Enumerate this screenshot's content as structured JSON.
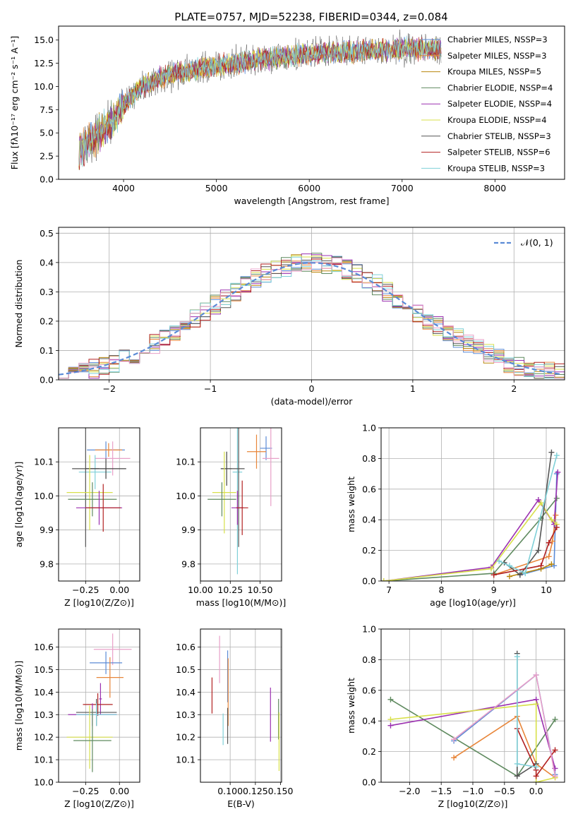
{
  "figure": {
    "title": "PLATE=0757, MJD=52238, FIBERID=0344, z=0.084"
  },
  "chart_data": [
    {
      "id": "spectrum",
      "type": "line",
      "xlabel": "wavelength [Angstrom, rest frame]",
      "ylabel": "Flux [fλ10⁻¹⁷ erg cm⁻² s⁻¹ A⁻¹]",
      "xlim": [
        3300,
        8750
      ],
      "ylim": [
        0,
        16.5
      ],
      "xticks": [
        4000,
        5000,
        6000,
        7000,
        8000
      ],
      "yticks": [
        0.0,
        2.5,
        5.0,
        7.5,
        10.0,
        12.5,
        15.0
      ],
      "ytick_labels": [
        "0.0",
        "2.5",
        "5.0",
        "7.5",
        "10.0",
        "12.5",
        "15.0"
      ],
      "legend_position": "upper-right",
      "grid": false,
      "series": [
        {
          "name": "Chabrier MILES, NSSP=3",
          "color": "#5b8bd6"
        },
        {
          "name": "Salpeter MILES, NSSP=3",
          "color": "#e8863a"
        },
        {
          "name": "Kroupa MILES, NSSP=5",
          "color": "#b8860b"
        },
        {
          "name": "Chabrier ELODIE, NSSP=4",
          "color": "#5f8a5f"
        },
        {
          "name": "Salpeter ELODIE, NSSP=4",
          "color": "#9b30b0"
        },
        {
          "name": "Kroupa ELODIE, NSSP=4",
          "color": "#d8e04a"
        },
        {
          "name": "Chabrier STELIB, NSSP=3",
          "color": "#555555"
        },
        {
          "name": "Salpeter STELIB, NSSP=6",
          "color": "#b22222"
        },
        {
          "name": "Kroupa STELIB, NSSP=3",
          "color": "#7fd0d8"
        }
      ],
      "continuum": {
        "x": [
          3500,
          3700,
          3900,
          4000,
          4200,
          4500,
          4800,
          5000,
          5200,
          5500,
          5800,
          6000,
          6300,
          6600,
          6800,
          7000,
          7200,
          7400
        ],
        "y": [
          3.0,
          4.5,
          6.5,
          8.0,
          10.0,
          11.3,
          11.8,
          12.2,
          12.5,
          13.0,
          13.2,
          13.5,
          13.7,
          13.8,
          13.9,
          14.0,
          14.1,
          14.0
        ]
      }
    },
    {
      "id": "residuals",
      "type": "histogram",
      "xlabel": "(data-model)/error",
      "ylabel": "Normed distribution",
      "xlim": [
        -2.5,
        2.5
      ],
      "ylim": [
        0,
        0.52
      ],
      "xticks": [
        -2,
        -1,
        0,
        1,
        2
      ],
      "xtick_labels": [
        "−2",
        "−1",
        "0",
        "1",
        "2"
      ],
      "yticks": [
        0.0,
        0.1,
        0.2,
        0.3,
        0.4,
        0.5
      ],
      "ytick_labels": [
        "0.0",
        "0.1",
        "0.2",
        "0.3",
        "0.4",
        "0.5"
      ],
      "grid": true,
      "legend_position": "upper-right",
      "reference_curve": {
        "name": "𝒩(0, 1)",
        "color": "#5b8bd6",
        "mean": 0,
        "sigma": 1
      },
      "bin_width": 0.1
    },
    {
      "id": "age-vs-Z",
      "type": "errorbar",
      "xlabel": "Z [log10(Z/Z⊙)]",
      "ylabel": "age  [log10(age/yr)]",
      "xlim": [
        -0.45,
        0.15
      ],
      "ylim": [
        9.75,
        10.2
      ],
      "xticks": [
        -0.25,
        0.0
      ],
      "xtick_labels": [
        "−0.25",
        "0.00"
      ],
      "yticks": [
        9.8,
        9.9,
        10.0,
        10.1
      ],
      "ytick_labels": [
        "9.8",
        "9.9",
        "10.0",
        "10.1"
      ],
      "grid": true,
      "points": [
        {
          "x": -0.1,
          "y": 10.135,
          "xerr": 0.14,
          "yerr": 0.025,
          "color": "#5b8bd6"
        },
        {
          "x": -0.08,
          "y": 10.135,
          "xerr": 0.1,
          "yerr": 0.02,
          "color": "#e8863a"
        },
        {
          "x": -0.05,
          "y": 10.11,
          "xerr": 0.13,
          "yerr": 0.05,
          "color": "#e8a0c8"
        },
        {
          "x": -0.18,
          "y": 10.07,
          "xerr": 0.12,
          "yerr": 0.05,
          "color": "#7fd0d8"
        },
        {
          "x": -0.25,
          "y": 10.08,
          "xerr": 0.1,
          "yerr": 0.23,
          "color": "#555555"
        },
        {
          "x": -0.1,
          "y": 10.08,
          "xerr": 0.15,
          "yerr": 0.03,
          "color": "#444444"
        },
        {
          "x": -0.22,
          "y": 10.01,
          "xerr": 0.17,
          "yerr": 0.11,
          "color": "#d8e04a"
        },
        {
          "x": -0.2,
          "y": 9.99,
          "xerr": 0.18,
          "yerr": 0.05,
          "color": "#5f8a5f"
        },
        {
          "x": -0.15,
          "y": 9.965,
          "xerr": 0.17,
          "yerr": 0.05,
          "color": "#9b30b0"
        },
        {
          "x": -0.12,
          "y": 9.965,
          "xerr": 0.13,
          "yerr": 0.07,
          "color": "#b22222"
        }
      ]
    },
    {
      "id": "age-vs-mass",
      "type": "errorbar",
      "xlabel": "mass [log10(M/M⊙)]",
      "ylabel": "",
      "xlim": [
        10.0,
        10.68
      ],
      "ylim": [
        9.75,
        10.2
      ],
      "xticks": [
        10.0,
        10.25,
        10.5
      ],
      "xtick_labels": [
        "10.00",
        "10.25",
        "10.50"
      ],
      "yticks": [
        9.8,
        9.9,
        10.0,
        10.1
      ],
      "ytick_labels": [
        "9.8",
        "9.9",
        "10.0",
        "10.1"
      ],
      "grid": true,
      "points": [
        {
          "x": 10.55,
          "y": 10.14,
          "xerr": 0.05,
          "yerr": 0.035,
          "color": "#5b8bd6"
        },
        {
          "x": 10.47,
          "y": 10.13,
          "xerr": 0.08,
          "yerr": 0.05,
          "color": "#e8863a"
        },
        {
          "x": 10.59,
          "y": 10.11,
          "xerr": 0.07,
          "yerr": 0.14,
          "color": "#e8a0c8"
        },
        {
          "x": 10.31,
          "y": 10.07,
          "xerr": 0.04,
          "yerr": 0.3,
          "color": "#7fd0d8"
        },
        {
          "x": 10.32,
          "y": 10.08,
          "xerr": 0.05,
          "yerr": 0.23,
          "color": "#555555"
        },
        {
          "x": 10.22,
          "y": 10.08,
          "xerr": 0.05,
          "yerr": 0.05,
          "color": "#444444"
        },
        {
          "x": 10.2,
          "y": 10.01,
          "xerr": 0.1,
          "yerr": 0.12,
          "color": "#d8e04a"
        },
        {
          "x": 10.18,
          "y": 9.99,
          "xerr": 0.12,
          "yerr": 0.05,
          "color": "#5f8a5f"
        },
        {
          "x": 10.31,
          "y": 9.965,
          "xerr": 0.05,
          "yerr": 0.05,
          "color": "#9b30b0"
        },
        {
          "x": 10.35,
          "y": 9.965,
          "xerr": 0.05,
          "yerr": 0.08,
          "color": "#b22222"
        }
      ]
    },
    {
      "id": "weight-vs-age",
      "type": "line",
      "xlabel": "age  [log10(age/yr)]",
      "ylabel": "mass weight",
      "xlim": [
        6.85,
        10.35
      ],
      "ylim": [
        0,
        1.0
      ],
      "xticks": [
        7,
        8,
        9,
        10
      ],
      "xtick_labels": [
        "7",
        "8",
        "9",
        "10"
      ],
      "yticks": [
        0.0,
        0.2,
        0.4,
        0.6,
        0.8,
        1.0
      ],
      "ytick_labels": [
        "0.0",
        "0.2",
        "0.4",
        "0.6",
        "0.8",
        "1.0"
      ],
      "grid": true,
      "series": [
        {
          "color": "#5b8bd6",
          "x": [
            9.5,
            10.15,
            10.2
          ],
          "y": [
            0.04,
            0.1,
            0.7
          ]
        },
        {
          "color": "#e8863a",
          "x": [
            9.0,
            10.05,
            10.12,
            10.18
          ],
          "y": [
            0.04,
            0.16,
            0.26,
            0.43
          ]
        },
        {
          "color": "#b8860b",
          "x": [
            9.3,
            9.9,
            10.1
          ],
          "y": [
            0.03,
            0.08,
            0.11
          ]
        },
        {
          "color": "#5f8a5f",
          "x": [
            6.9,
            9.0,
            9.9,
            10.2
          ],
          "y": [
            0.0,
            0.05,
            0.41,
            0.54
          ]
        },
        {
          "color": "#9b30b0",
          "x": [
            6.9,
            8.95,
            9.85,
            10.15,
            10.22
          ],
          "y": [
            0.0,
            0.09,
            0.53,
            0.37,
            0.71
          ]
        },
        {
          "color": "#d8e04a",
          "x": [
            6.9,
            8.95,
            9.9,
            10.1,
            10.2
          ],
          "y": [
            0.0,
            0.08,
            0.51,
            0.4,
            0.37
          ]
        },
        {
          "color": "#555555",
          "x": [
            9.2,
            9.5,
            9.85,
            10.1
          ],
          "y": [
            0.12,
            0.04,
            0.2,
            0.84
          ]
        },
        {
          "color": "#b22222",
          "x": [
            9.0,
            9.9,
            10.05,
            10.2
          ],
          "y": [
            0.04,
            0.1,
            0.25,
            0.35
          ]
        },
        {
          "color": "#7fd0d8",
          "x": [
            9.1,
            9.3,
            9.6,
            10.2
          ],
          "y": [
            0.13,
            0.1,
            0.05,
            0.82
          ]
        }
      ]
    },
    {
      "id": "mass-vs-Z",
      "type": "errorbar",
      "xlabel": "Z [log10(Z/Z⊙)]",
      "ylabel": "mass [log10(M/M⊙)]",
      "xlim": [
        -0.45,
        0.15
      ],
      "ylim": [
        10.0,
        10.68
      ],
      "xticks": [
        -0.25,
        0.0
      ],
      "xtick_labels": [
        "−0.25",
        "0.00"
      ],
      "yticks": [
        10.0,
        10.1,
        10.2,
        10.3,
        10.4,
        10.5,
        10.6
      ],
      "ytick_labels": [
        "10.0",
        "10.1",
        "10.2",
        "10.3",
        "10.4",
        "10.5",
        "10.6"
      ],
      "grid": true,
      "points": [
        {
          "x": -0.05,
          "y": 10.59,
          "xerr": 0.14,
          "yerr": 0.07,
          "color": "#e8a0c8"
        },
        {
          "x": -0.1,
          "y": 10.53,
          "xerr": 0.12,
          "yerr": 0.05,
          "color": "#5b8bd6"
        },
        {
          "x": -0.07,
          "y": 10.465,
          "xerr": 0.1,
          "yerr": 0.09,
          "color": "#e8863a"
        },
        {
          "x": -0.14,
          "y": 10.37,
          "xerr": 0.01,
          "yerr": 0.07,
          "color": "#9b30b0"
        },
        {
          "x": -0.16,
          "y": 10.345,
          "xerr": 0.11,
          "yerr": 0.05,
          "color": "#b22222"
        },
        {
          "x": -0.17,
          "y": 10.31,
          "xerr": 0.15,
          "yerr": 0.06,
          "color": "#555555"
        },
        {
          "x": -0.2,
          "y": 10.3,
          "xerr": 0.18,
          "yerr": 0.05,
          "color": "#9b30b0"
        },
        {
          "x": -0.17,
          "y": 10.3,
          "xerr": 0.15,
          "yerr": 0.05,
          "color": "#7fd0d8"
        },
        {
          "x": -0.22,
          "y": 10.2,
          "xerr": 0.17,
          "yerr": 0.14,
          "color": "#d8e04a"
        },
        {
          "x": -0.2,
          "y": 10.185,
          "xerr": 0.14,
          "yerr": 0.14,
          "color": "#5f8a5f"
        }
      ]
    },
    {
      "id": "mass-vs-ebv",
      "type": "errorbar",
      "xlabel": "E(B-V)",
      "ylabel": "",
      "xlim": [
        0.0705,
        0.151
      ],
      "ylim": [
        10.0,
        10.68
      ],
      "xticks": [
        0.1,
        0.125,
        0.15
      ],
      "xtick_labels": [
        "0.100",
        "0.125",
        "0.150"
      ],
      "yticks": [
        10.1,
        10.2,
        10.3,
        10.4,
        10.5,
        10.6
      ],
      "ytick_labels": [
        "10.1",
        "10.2",
        "10.3",
        "10.4",
        "10.5",
        "10.6"
      ],
      "grid": true,
      "points": [
        {
          "x": 0.0895,
          "y": 10.545,
          "xerr": 0,
          "yerr": 0.105,
          "color": "#e8a0c8"
        },
        {
          "x": 0.0975,
          "y": 10.47,
          "xerr": 0,
          "yerr": 0.115,
          "color": "#5b8bd6"
        },
        {
          "x": 0.098,
          "y": 10.4,
          "xerr": 0,
          "yerr": 0.15,
          "color": "#e8863a"
        },
        {
          "x": 0.082,
          "y": 10.385,
          "xerr": 0,
          "yerr": 0.08,
          "color": "#b22222"
        },
        {
          "x": 0.14,
          "y": 10.3,
          "xerr": 0,
          "yerr": 0.12,
          "color": "#9b30b0"
        },
        {
          "x": 0.0975,
          "y": 10.25,
          "xerr": 0,
          "yerr": 0.08,
          "color": "#555555"
        },
        {
          "x": 0.093,
          "y": 10.235,
          "xerr": 0,
          "yerr": 0.07,
          "color": "#7fd0d8"
        },
        {
          "x": 0.148,
          "y": 10.28,
          "xerr": 0,
          "yerr": 0.09,
          "color": "#5f8a5f"
        },
        {
          "x": 0.1485,
          "y": 10.18,
          "xerr": 0,
          "yerr": 0.13,
          "color": "#d8e04a"
        }
      ]
    },
    {
      "id": "weight-vs-Z",
      "type": "line",
      "xlabel": "Z [log10(Z/Z⊙)]",
      "ylabel": "mass weight",
      "xlim": [
        -2.45,
        0.45
      ],
      "ylim": [
        0,
        1.0
      ],
      "xticks": [
        -2.0,
        -1.5,
        -1.0,
        -0.5,
        0.0
      ],
      "xtick_labels": [
        "−2.0",
        "−1.5",
        "−1.0",
        "−0.5",
        "0.0"
      ],
      "yticks": [
        0.0,
        0.2,
        0.4,
        0.6,
        0.8,
        1.0
      ],
      "ytick_labels": [
        "0.0",
        "0.2",
        "0.4",
        "0.6",
        "0.8",
        "1.0"
      ],
      "grid": true,
      "series": [
        {
          "color": "#5b8bd6",
          "x": [
            -1.3,
            0.0,
            0.3
          ],
          "y": [
            0.27,
            0.7,
            0.05
          ]
        },
        {
          "color": "#e8863a",
          "x": [
            -1.3,
            -0.3,
            0.0,
            0.3
          ],
          "y": [
            0.16,
            0.43,
            0.12,
            0.03
          ]
        },
        {
          "color": "#5f8a5f",
          "x": [
            -2.3,
            -0.3,
            0.3
          ],
          "y": [
            0.54,
            0.04,
            0.41
          ]
        },
        {
          "color": "#9b30b0",
          "x": [
            -2.3,
            0.0,
            0.3
          ],
          "y": [
            0.37,
            0.54,
            0.09
          ]
        },
        {
          "color": "#d8e04a",
          "x": [
            -2.3,
            0.0,
            0.0,
            0.3
          ],
          "y": [
            0.41,
            0.51,
            0.0,
            0.03
          ]
        },
        {
          "color": "#555555",
          "x": [
            -0.3,
            -0.3,
            0.0
          ],
          "y": [
            0.84,
            0.04,
            0.12
          ]
        },
        {
          "color": "#b22222",
          "x": [
            -0.3,
            0.0,
            0.0,
            0.3
          ],
          "y": [
            0.35,
            0.08,
            0.04,
            0.21
          ]
        },
        {
          "color": "#7fd0d8",
          "x": [
            -0.3,
            -0.3,
            0.0
          ],
          "y": [
            0.82,
            0.12,
            0.1
          ]
        },
        {
          "color": "#e8a0c8",
          "x": [
            -1.3,
            0.0,
            0.3
          ],
          "y": [
            0.28,
            0.7,
            0.04
          ]
        }
      ]
    }
  ]
}
